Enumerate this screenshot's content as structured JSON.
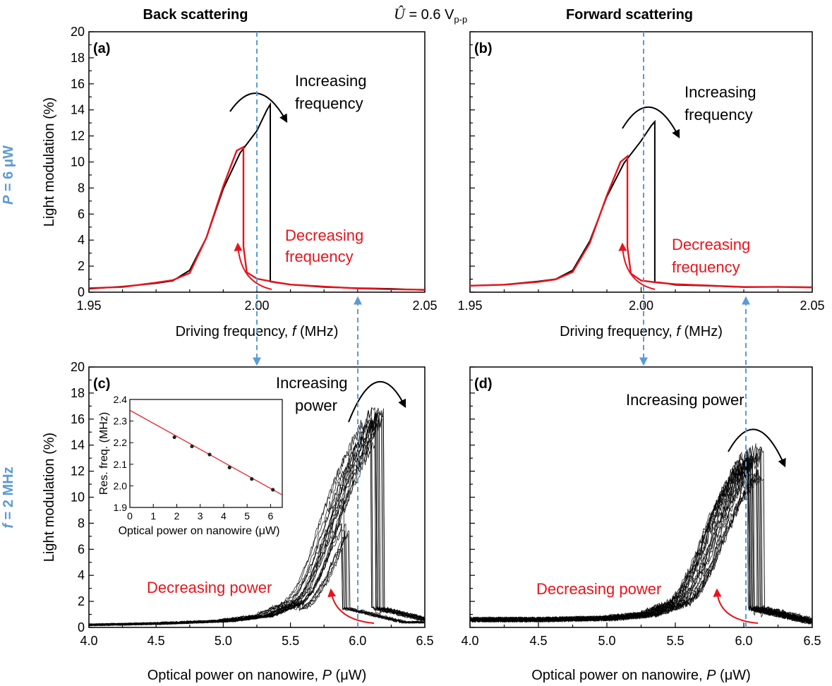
{
  "header": {
    "left": "Back scattering",
    "right": "Forward scattering",
    "voltage_symbol": "Û",
    "voltage_eq": " = 0.6 V",
    "voltage_sub": "p-p"
  },
  "row_labels": {
    "top_var": "P",
    "top_rest": " = 6 μW",
    "bottom_var": "f",
    "bottom_rest": " = 2 MHz"
  },
  "colors": {
    "black": "#000000",
    "red": "#e8141c",
    "blue_dash": "#5b9bd5"
  },
  "chart_data": [
    {
      "panel": "(a)",
      "type": "line",
      "xlabel_pre": "Driving frequency, ",
      "xlabel_var": "f",
      "xlabel_post": " (MHz)",
      "ylabel": "Light modulation (%)",
      "xlim": [
        1.95,
        2.05
      ],
      "ylim": [
        0,
        20
      ],
      "xticks": [
        "1.95",
        "2.00",
        "2.05"
      ],
      "yticks": [
        "0",
        "2",
        "4",
        "6",
        "8",
        "10",
        "12",
        "14",
        "16",
        "18",
        "20"
      ],
      "annotations": {
        "black": [
          "Increasing",
          "frequency"
        ],
        "red": [
          "Decreasing",
          "frequency"
        ]
      },
      "series": [
        {
          "color": "black",
          "x": [
            1.95,
            1.96,
            1.97,
            1.975,
            1.98,
            1.985,
            1.99,
            1.995,
            2.0,
            2.003,
            2.004,
            2.004,
            2.006,
            2.01,
            2.02,
            2.03,
            2.04,
            2.05
          ],
          "y": [
            0.3,
            0.4,
            0.7,
            0.9,
            1.6,
            4.2,
            8.0,
            10.6,
            12.3,
            14.0,
            14.4,
            0.8,
            0.7,
            0.6,
            0.4,
            0.3,
            0.25,
            0.2
          ]
        },
        {
          "color": "red",
          "x": [
            1.95,
            1.96,
            1.97,
            1.975,
            1.98,
            1.985,
            1.99,
            1.994,
            1.996,
            1.996,
            1.997,
            2.0,
            2.005,
            2.01,
            2.02,
            2.03,
            2.04,
            2.05
          ],
          "y": [
            0.3,
            0.4,
            0.7,
            0.9,
            1.6,
            4.2,
            8.0,
            10.8,
            11.1,
            3.5,
            1.5,
            1.0,
            0.8,
            0.6,
            0.4,
            0.3,
            0.25,
            0.2
          ]
        }
      ]
    },
    {
      "panel": "(b)",
      "type": "line",
      "xlabel_pre": "Driving frequency, ",
      "xlabel_var": "f",
      "xlabel_post": " (MHz)",
      "ylabel": "",
      "xlim": [
        1.95,
        2.05
      ],
      "ylim": [
        0,
        20
      ],
      "xticks": [
        "1.95",
        "2.00",
        "2.05"
      ],
      "yticks": [],
      "annotations": {
        "black": [
          "Increasing",
          "frequency"
        ],
        "red": [
          "Decreasing",
          "frequency"
        ]
      },
      "series": [
        {
          "color": "black",
          "x": [
            1.95,
            1.96,
            1.97,
            1.975,
            1.98,
            1.985,
            1.99,
            1.995,
            2.0,
            2.003,
            2.004,
            2.004,
            2.006,
            2.01,
            2.02,
            2.03,
            2.04,
            2.05
          ],
          "y": [
            0.5,
            0.6,
            0.8,
            1.0,
            1.6,
            3.8,
            7.5,
            10.0,
            11.6,
            12.8,
            13.1,
            0.8,
            0.7,
            0.6,
            0.5,
            0.4,
            0.4,
            0.35
          ]
        },
        {
          "color": "red",
          "x": [
            1.95,
            1.96,
            1.97,
            1.975,
            1.98,
            1.985,
            1.99,
            1.994,
            1.996,
            1.996,
            1.997,
            2.0,
            2.005,
            2.01,
            2.02,
            2.03,
            2.04,
            2.05
          ],
          "y": [
            0.5,
            0.6,
            0.8,
            1.0,
            1.6,
            3.8,
            7.5,
            10.0,
            10.4,
            3.5,
            1.4,
            0.9,
            0.7,
            0.6,
            0.5,
            0.4,
            0.4,
            0.35
          ]
        }
      ]
    },
    {
      "panel": "(c)",
      "type": "line",
      "xlabel_pre": "Optical power on nanowire, ",
      "xlabel_var": "P",
      "xlabel_post": " (μW)",
      "ylabel": "Light modulation (%)",
      "xlim": [
        4.0,
        6.5
      ],
      "ylim": [
        0,
        20
      ],
      "xticks": [
        "4.0",
        "4.5",
        "5.0",
        "5.5",
        "6.0",
        "6.5"
      ],
      "yticks": [
        "0",
        "2",
        "4",
        "6",
        "8",
        "10",
        "12",
        "14",
        "16",
        "18",
        "20"
      ],
      "annotations": {
        "black": [
          "Increasing",
          "power"
        ],
        "red": [
          "Decreasing power"
        ]
      },
      "series": [
        {
          "color": "black",
          "name_hint": "sweep-envelope",
          "x": [
            4.0,
            4.5,
            5.0,
            5.3,
            5.5,
            5.6,
            5.7,
            5.8,
            5.9,
            6.0,
            6.1,
            6.15,
            6.2,
            6.2,
            6.3,
            6.4,
            6.5
          ],
          "y": [
            0.2,
            0.3,
            0.5,
            0.9,
            1.8,
            3.0,
            5.5,
            9.0,
            12.0,
            14.5,
            16.5,
            17.3,
            17.6,
            1.2,
            0.9,
            0.7,
            0.5
          ]
        }
      ],
      "inset": {
        "type": "scatter",
        "xlabel": "Optical power on nanowire (μW)",
        "ylabel": "Res. freq. (MHz)",
        "xlim": [
          0,
          6.5
        ],
        "ylim": [
          1.9,
          2.4
        ],
        "xticks": [
          "0",
          "1",
          "2",
          "3",
          "4",
          "5",
          "6"
        ],
        "yticks": [
          "1.9",
          "2.0",
          "2.1",
          "2.2",
          "2.3",
          "2.4"
        ],
        "x": [
          1.9,
          2.65,
          3.4,
          4.25,
          5.2,
          6.1
        ],
        "y": [
          2.225,
          2.183,
          2.145,
          2.085,
          2.032,
          1.982
        ],
        "fit": {
          "x": [
            0,
            6.5
          ],
          "y": [
            2.35,
            1.958
          ]
        }
      }
    },
    {
      "panel": "(d)",
      "type": "line",
      "xlabel_pre": "Optical power on nanowire, ",
      "xlabel_var": "P",
      "xlabel_post": " (μW)",
      "ylabel": "",
      "xlim": [
        4.0,
        6.5
      ],
      "ylim": [
        0,
        20
      ],
      "xticks": [
        "4.0",
        "4.5",
        "5.0",
        "5.5",
        "6.0",
        "6.5"
      ],
      "yticks": [],
      "annotations": {
        "black": [
          "Increasing power"
        ],
        "red": [
          "Decreasing power"
        ]
      },
      "series": [
        {
          "color": "black",
          "name_hint": "sweep-envelope",
          "x": [
            4.0,
            4.5,
            5.0,
            5.3,
            5.5,
            5.6,
            5.7,
            5.8,
            5.9,
            6.0,
            6.1,
            6.15,
            6.15,
            6.3,
            6.4,
            6.5
          ],
          "y": [
            0.6,
            0.6,
            0.7,
            1.0,
            1.8,
            3.0,
            5.3,
            8.5,
            11.0,
            13.0,
            14.0,
            14.2,
            1.0,
            0.8,
            0.7,
            0.6
          ]
        }
      ]
    }
  ]
}
